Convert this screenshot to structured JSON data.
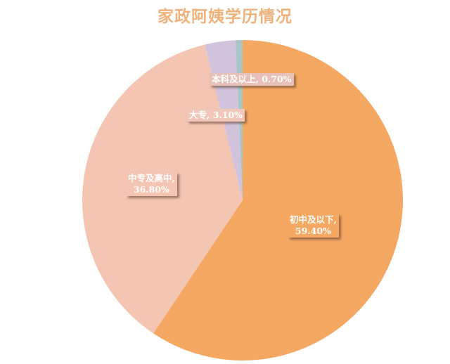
{
  "chart_data": {
    "type": "pie",
    "title": "家政阿姨学历情况",
    "start_angle": "12 o'clock",
    "direction": "clockwise",
    "slices": [
      {
        "label": "初中及以下",
        "value": 59.4,
        "display": "初中及以下,",
        "value_text": "59.40%",
        "color": "#f4a862"
      },
      {
        "label": "中专及高中",
        "value": 36.8,
        "display": "中专及高中,",
        "value_text": "36.80%",
        "color": "#f4c5b2"
      },
      {
        "label": "大专",
        "value": 3.1,
        "display": "大专, 3.10%",
        "value_text": "",
        "color": "#d2c3dd"
      },
      {
        "label": "本科及以上",
        "value": 0.7,
        "display": "本科及以上, 0.70%",
        "value_text": "",
        "color": "#a9c6c4"
      }
    ]
  }
}
